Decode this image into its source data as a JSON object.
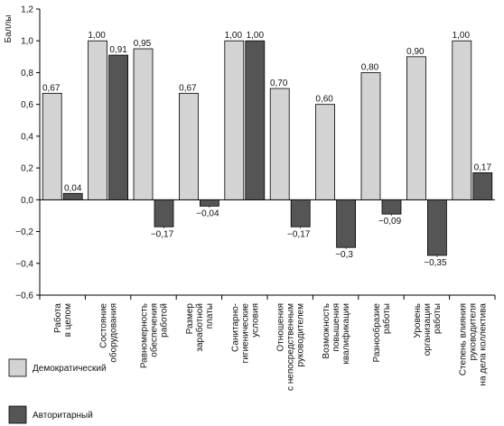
{
  "chart_data": {
    "type": "bar",
    "ylabel": "Баллы",
    "ylim": [
      -0.6,
      1.2
    ],
    "y_ticks": [
      "1,2",
      "1,0",
      "0,8",
      "0,6",
      "0,4",
      "0,2",
      "0,0",
      "−0,2",
      "−0,4",
      "−0,6"
    ],
    "y_tick_values": [
      1.2,
      1.0,
      0.8,
      0.6,
      0.4,
      0.2,
      0.0,
      -0.2,
      -0.4,
      -0.6
    ],
    "grid": false,
    "legend_position": "bottom-left",
    "categories": [
      [
        "Работа",
        "в целом"
      ],
      [
        "Состояние",
        "оборудования"
      ],
      [
        "Равномерность",
        "обеспечения",
        "работой"
      ],
      [
        "Размер",
        "заработной",
        "платы"
      ],
      [
        "Санитарно-",
        "гигиенические",
        "условия"
      ],
      [
        "Отношения",
        "с непосредственным",
        "руководителем"
      ],
      [
        "Возможность",
        "повышения",
        "квалификации"
      ],
      [
        "Разнообразие",
        "работы"
      ],
      [
        "Уровень",
        "организации",
        "работы"
      ],
      [
        "Степень влияния",
        "руководителя",
        "на дела коллектива"
      ]
    ],
    "series": [
      {
        "name": "Демократический",
        "color": "#d3d3d3",
        "values": [
          0.67,
          1.0,
          0.95,
          0.67,
          1.0,
          0.7,
          0.6,
          0.8,
          0.9,
          1.0
        ],
        "labels": [
          "0,67",
          "1,00",
          "0,95",
          "0,67",
          "1,00",
          "0,70",
          "0,60",
          "0,80",
          "0,90",
          "1,00"
        ]
      },
      {
        "name": "Авторитарный",
        "color": "#555555",
        "values": [
          0.04,
          0.91,
          -0.17,
          -0.04,
          1.0,
          -0.17,
          -0.3,
          -0.09,
          -0.35,
          0.17
        ],
        "labels": [
          "0,04",
          "0,91",
          "−0,17",
          "−0,04",
          "1,00",
          "−0,17",
          "−0,3",
          "−0,09",
          "−0,35",
          "0,17"
        ]
      }
    ]
  }
}
